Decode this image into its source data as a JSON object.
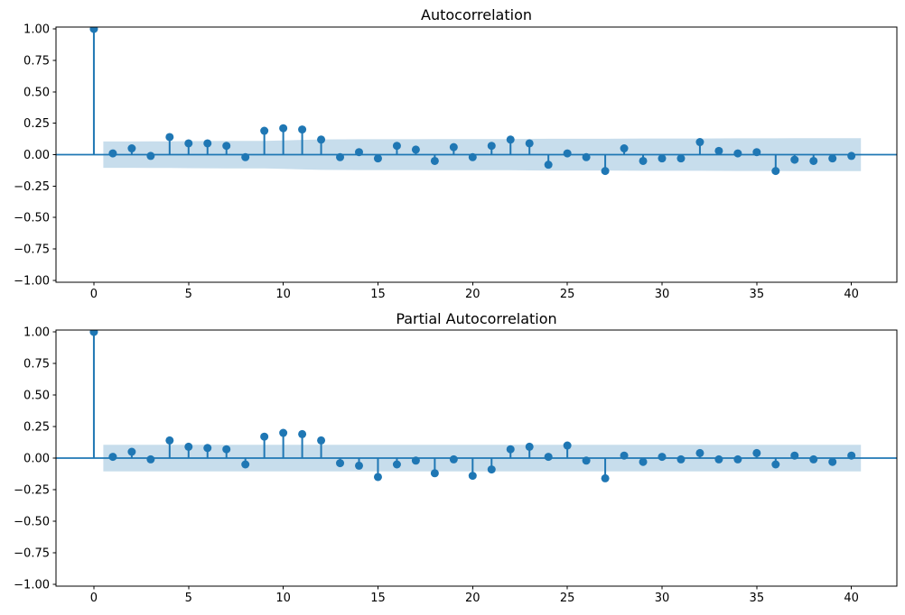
{
  "figure": {
    "background": "#ffffff"
  },
  "colors": {
    "series": "#1f77b4",
    "band": "rgba(31,119,180,0.25)",
    "spine": "#000000",
    "text": "#000000"
  },
  "chart_data": [
    {
      "type": "stem",
      "title": "Autocorrelation",
      "lags": [
        0,
        1,
        2,
        3,
        4,
        5,
        6,
        7,
        8,
        9,
        10,
        11,
        12,
        13,
        14,
        15,
        16,
        17,
        18,
        19,
        20,
        21,
        22,
        23,
        24,
        25,
        26,
        27,
        28,
        29,
        30,
        31,
        32,
        33,
        34,
        35,
        36,
        37,
        38,
        39,
        40
      ],
      "values": [
        1.0,
        0.01,
        0.05,
        -0.01,
        0.14,
        0.09,
        0.09,
        0.07,
        -0.02,
        0.19,
        0.21,
        0.2,
        0.12,
        -0.02,
        0.02,
        -0.03,
        0.07,
        0.04,
        -0.05,
        0.06,
        -0.02,
        0.07,
        0.12,
        0.09,
        -0.08,
        0.01,
        -0.02,
        -0.13,
        0.05,
        -0.05,
        -0.03,
        -0.03,
        0.1,
        0.03,
        0.01,
        0.02,
        -0.13,
        -0.04,
        -0.05,
        -0.03,
        -0.01
      ],
      "conf_band": {
        "x_start": 0.5,
        "x_end": 40.5,
        "halfwidths": [
          0.105,
          0.105,
          0.1053,
          0.1053,
          0.1073,
          0.1081,
          0.109,
          0.1095,
          0.1095,
          0.1131,
          0.1173,
          0.121,
          0.1223,
          0.1224,
          0.1224,
          0.1225,
          0.1229,
          0.1231,
          0.1233,
          0.1236,
          0.1237,
          0.1241,
          0.1253,
          0.126,
          0.1266,
          0.1266,
          0.1266,
          0.128,
          0.1282,
          0.1284,
          0.1285,
          0.1286,
          0.1294,
          0.1295,
          0.1295,
          0.1295,
          0.1309,
          0.131,
          0.1312,
          0.1313
        ]
      },
      "xlim": [
        -2.0,
        42.4
      ],
      "ylim": [
        -1.015,
        1.015
      ],
      "xticks": [
        0,
        5,
        10,
        15,
        20,
        25,
        30,
        35,
        40
      ],
      "yticks": [
        1.0,
        0.75,
        0.5,
        0.25,
        0.0,
        -0.25,
        -0.5,
        -0.75,
        -1.0
      ],
      "ytick_labels": [
        "1.00",
        "0.75",
        "0.50",
        "0.25",
        "0.00",
        "−0.25",
        "−0.50",
        "−0.75",
        "−1.00"
      ],
      "grid": false,
      "legend": null
    },
    {
      "type": "stem",
      "title": "Partial Autocorrelation",
      "lags": [
        0,
        1,
        2,
        3,
        4,
        5,
        6,
        7,
        8,
        9,
        10,
        11,
        12,
        13,
        14,
        15,
        16,
        17,
        18,
        19,
        20,
        21,
        22,
        23,
        24,
        25,
        26,
        27,
        28,
        29,
        30,
        31,
        32,
        33,
        34,
        35,
        36,
        37,
        38,
        39,
        40
      ],
      "values": [
        1.0,
        0.01,
        0.05,
        -0.01,
        0.14,
        0.09,
        0.08,
        0.07,
        -0.05,
        0.17,
        0.2,
        0.19,
        0.14,
        -0.04,
        -0.06,
        -0.15,
        -0.05,
        -0.02,
        -0.12,
        -0.01,
        -0.14,
        -0.09,
        0.07,
        0.09,
        0.01,
        0.1,
        -0.02,
        -0.16,
        0.02,
        -0.03,
        0.01,
        -0.01,
        0.04,
        -0.01,
        -0.01,
        0.04,
        -0.05,
        0.02,
        -0.01,
        -0.03,
        0.02
      ],
      "conf_band": {
        "x_start": 0.5,
        "x_end": 40.5,
        "halfwidths": [
          0.105,
          0.105,
          0.105,
          0.105,
          0.105,
          0.105,
          0.105,
          0.105,
          0.105,
          0.105,
          0.105,
          0.105,
          0.105,
          0.105,
          0.105,
          0.105,
          0.105,
          0.105,
          0.105,
          0.105,
          0.105,
          0.105,
          0.105,
          0.105,
          0.105,
          0.105,
          0.105,
          0.105,
          0.105,
          0.105,
          0.105,
          0.105,
          0.105,
          0.105,
          0.105,
          0.105,
          0.105,
          0.105,
          0.105,
          0.105
        ]
      },
      "xlim": [
        -2.0,
        42.4
      ],
      "ylim": [
        -1.015,
        1.015
      ],
      "xticks": [
        0,
        5,
        10,
        15,
        20,
        25,
        30,
        35,
        40
      ],
      "yticks": [
        1.0,
        0.75,
        0.5,
        0.25,
        0.0,
        -0.25,
        -0.5,
        -0.75,
        -1.0
      ],
      "ytick_labels": [
        "1.00",
        "0.75",
        "0.50",
        "0.25",
        "0.00",
        "−0.25",
        "−0.50",
        "−0.75",
        "−1.00"
      ],
      "grid": false,
      "legend": null
    }
  ]
}
